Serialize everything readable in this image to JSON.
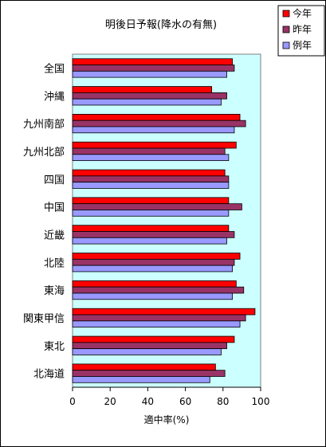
{
  "chart_data": {
    "type": "bar",
    "orientation": "horizontal",
    "title": "明後日予報(降水の有無)",
    "xlabel": "適中率(%)",
    "ylabel": "",
    "xlim": [
      0,
      100
    ],
    "xticks": [
      0,
      20,
      40,
      60,
      80,
      100
    ],
    "grid": false,
    "legend_position": "top-right",
    "categories": [
      "全国",
      "沖縄",
      "九州南部",
      "九州北部",
      "四国",
      "中国",
      "近畿",
      "北陸",
      "東海",
      "関東甲信",
      "東北",
      "北海道"
    ],
    "series": [
      {
        "name": "今年",
        "color": "#ff0000",
        "values": [
          85,
          74,
          89,
          87,
          81,
          83,
          83,
          89,
          87,
          97,
          86,
          76
        ]
      },
      {
        "name": "昨年",
        "color": "#993366",
        "values": [
          86,
          82,
          92,
          81,
          83,
          90,
          86,
          86,
          91,
          92,
          82,
          81
        ]
      },
      {
        "name": "例年",
        "color": "#9999ff",
        "values": [
          82,
          79,
          86,
          83,
          83,
          83,
          82,
          85,
          85,
          89,
          79,
          73
        ]
      }
    ],
    "colors": {
      "plot_background": "#ccffff",
      "plot_border": "#808080",
      "bar_outline": "#000000"
    }
  }
}
